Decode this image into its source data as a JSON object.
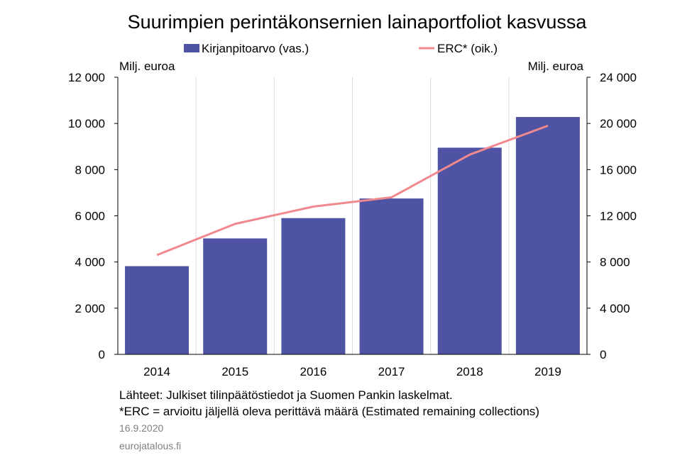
{
  "chart_data": {
    "type": "bar",
    "title": "Suurimpien perintäkonsernien lainaportfoliot kasvussa",
    "categories": [
      "2014",
      "2015",
      "2016",
      "2017",
      "2018",
      "2019"
    ],
    "series": [
      {
        "name": "Kirjanpitoarvo (vas.)",
        "type": "bar",
        "axis": "left",
        "color": "#4f53a3",
        "values": [
          3820,
          5020,
          5900,
          6750,
          8950,
          10280
        ]
      },
      {
        "name": "ERC* (oik.)",
        "type": "line",
        "axis": "right",
        "color": "#f0898d",
        "values": [
          8600,
          11300,
          12800,
          13600,
          17300,
          19800
        ]
      }
    ],
    "ylabel_left": "Milj. euroa",
    "ylabel_right": "Milj. euroa",
    "ylim_left": [
      0,
      12000
    ],
    "ylim_right": [
      0,
      24000
    ],
    "yticks_left": [
      "0",
      "2 000",
      "4 000",
      "6 000",
      "8 000",
      "10 000",
      "12 000"
    ],
    "yticks_right": [
      "0",
      "4 000",
      "8 000",
      "12 000",
      "16 000",
      "20 000",
      "24 000"
    ],
    "grid": "vertical",
    "legend_position": "top"
  },
  "notes": {
    "source": "Lähteet: Julkiset tilinpäätöstiedot ja Suomen Pankin laskelmat.",
    "footnote": "*ERC = arvioitu jäljellä  oleva perittävä määrä (Estimated remaining collections)",
    "date": "16.9.2020",
    "site": "eurojatalous.fi"
  }
}
